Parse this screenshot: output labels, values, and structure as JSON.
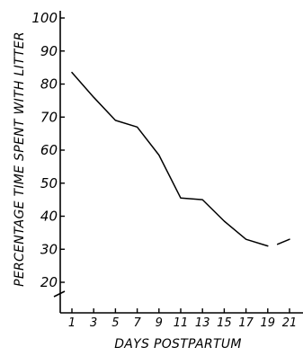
{
  "chart_data": {
    "type": "line",
    "xlabel": "DAYS POSTPARTUM",
    "ylabel": "PERCENTAGE TIME SPENT WITH LITTER",
    "xlim": [
      0,
      21.8
    ],
    "ylim": [
      15,
      100
    ],
    "axis_break": true,
    "x_ticks": [
      1,
      3,
      5,
      7,
      9,
      11,
      13,
      15,
      17,
      19,
      21
    ],
    "y_ticks": [
      20,
      30,
      40,
      50,
      60,
      70,
      80,
      90,
      100
    ],
    "grid": false,
    "series": [
      {
        "x": [
          1,
          3,
          5,
          7,
          9,
          11,
          13,
          15,
          17,
          19
        ],
        "y": [
          83.5,
          76,
          69,
          67,
          58.5,
          45.5,
          45,
          38.5,
          33,
          31
        ]
      },
      {
        "x": [
          19.9,
          21
        ],
        "y": [
          31.5,
          33
        ]
      }
    ]
  }
}
